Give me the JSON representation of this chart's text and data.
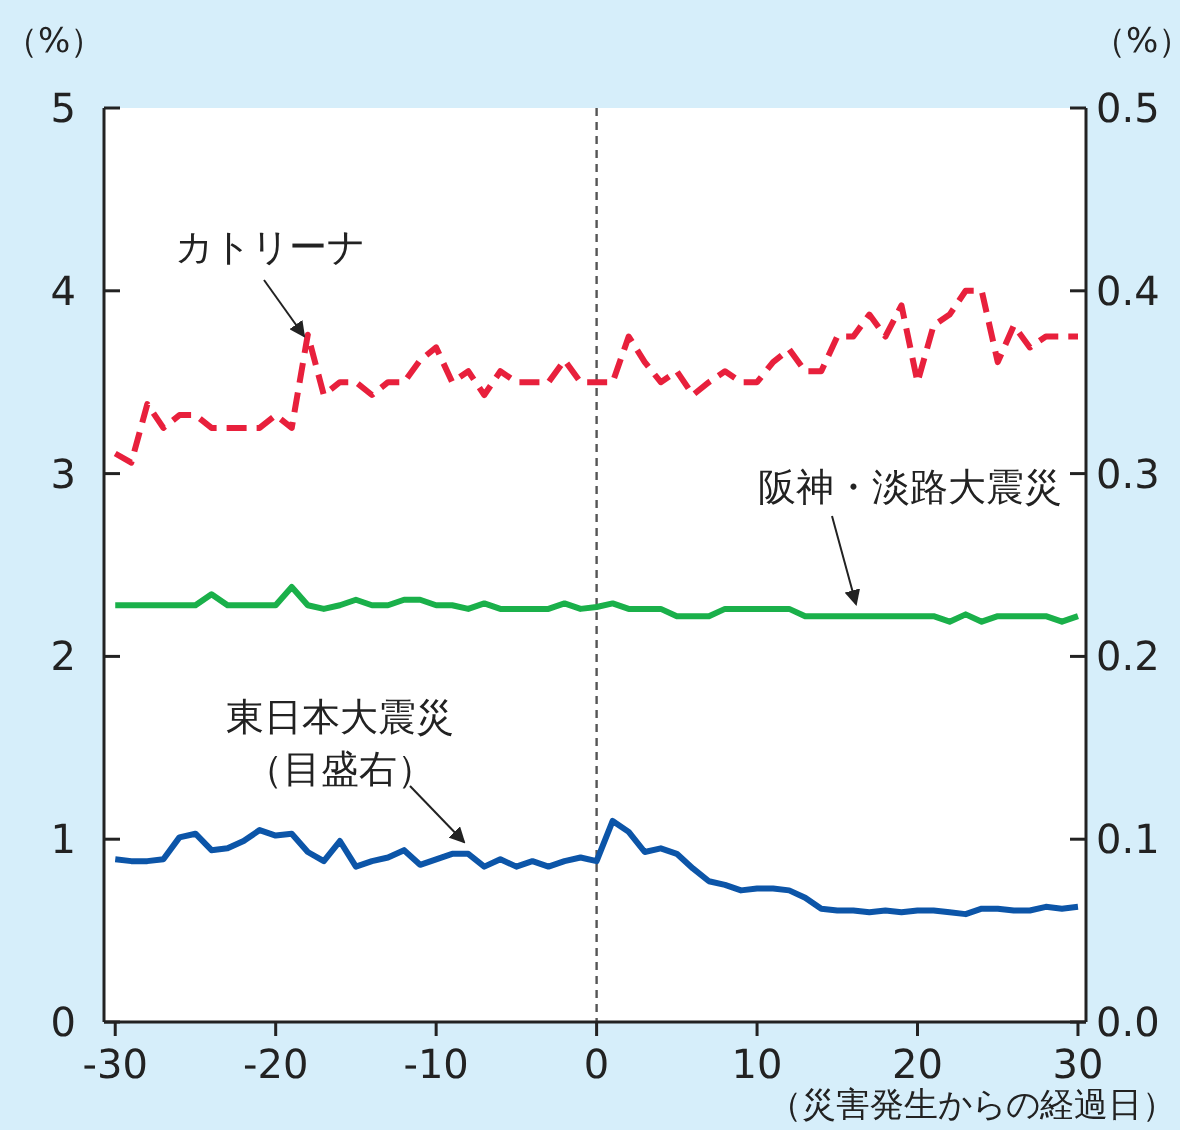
{
  "chart_data": {
    "type": "line",
    "xlabel": "（災害発生からの経過日）",
    "ylabel": "（%）",
    "y2label": "（%）",
    "x": [
      -30,
      -29,
      -28,
      -27,
      -26,
      -25,
      -24,
      -23,
      -22,
      -21,
      -20,
      -19,
      -18,
      -17,
      -16,
      -15,
      -14,
      -13,
      -12,
      -11,
      -10,
      -9,
      -8,
      -7,
      -6,
      -5,
      -4,
      -3,
      -2,
      -1,
      0,
      1,
      2,
      3,
      4,
      5,
      6,
      7,
      8,
      9,
      10,
      11,
      12,
      13,
      14,
      15,
      16,
      17,
      18,
      19,
      20,
      21,
      22,
      23,
      24,
      25,
      26,
      27,
      28,
      29,
      30
    ],
    "series": [
      {
        "name": "カトリーナ",
        "color": "#e8203c",
        "line_style": "dashed",
        "values": [
          3.11,
          3.06,
          3.38,
          3.25,
          3.32,
          3.32,
          3.25,
          3.25,
          3.25,
          3.25,
          3.32,
          3.25,
          3.76,
          3.43,
          3.5,
          3.5,
          3.43,
          3.5,
          3.5,
          3.62,
          3.69,
          3.5,
          3.56,
          3.43,
          3.56,
          3.5,
          3.5,
          3.5,
          3.62,
          3.5,
          3.5,
          3.5,
          3.75,
          3.61,
          3.5,
          3.56,
          3.43,
          3.5,
          3.56,
          3.5,
          3.5,
          3.61,
          3.68,
          3.56,
          3.56,
          3.75,
          3.75,
          3.87,
          3.75,
          3.92,
          3.5,
          3.81,
          3.87,
          4.0,
          4.0,
          3.61,
          3.81,
          3.69,
          3.75,
          3.75,
          3.75
        ]
      },
      {
        "name": "阪神・淡路大震災",
        "color": "#1ab04a",
        "line_style": "solid",
        "values": [
          2.28,
          2.28,
          2.28,
          2.28,
          2.28,
          2.28,
          2.34,
          2.28,
          2.28,
          2.28,
          2.28,
          2.38,
          2.28,
          2.26,
          2.28,
          2.31,
          2.28,
          2.28,
          2.31,
          2.31,
          2.28,
          2.28,
          2.26,
          2.29,
          2.26,
          2.26,
          2.26,
          2.26,
          2.29,
          2.26,
          2.27,
          2.29,
          2.26,
          2.26,
          2.26,
          2.22,
          2.22,
          2.22,
          2.26,
          2.26,
          2.26,
          2.26,
          2.26,
          2.22,
          2.22,
          2.22,
          2.22,
          2.22,
          2.22,
          2.22,
          2.22,
          2.22,
          2.19,
          2.23,
          2.19,
          2.22,
          2.22,
          2.22,
          2.22,
          2.19,
          2.22
        ]
      },
      {
        "name": "東日本大震災",
        "color": "#0c55a8",
        "line_style": "solid",
        "axis": "y2",
        "values": [
          0.089,
          0.088,
          0.088,
          0.089,
          0.101,
          0.103,
          0.094,
          0.095,
          0.099,
          0.105,
          0.102,
          0.103,
          0.093,
          0.088,
          0.099,
          0.085,
          0.088,
          0.09,
          0.094,
          0.086,
          0.089,
          0.092,
          0.092,
          0.085,
          0.089,
          0.085,
          0.088,
          0.085,
          0.088,
          0.09,
          0.088,
          0.11,
          0.104,
          0.093,
          0.095,
          0.092,
          0.084,
          0.077,
          0.075,
          0.072,
          0.073,
          0.073,
          0.072,
          0.068,
          0.062,
          0.061,
          0.061,
          0.06,
          0.061,
          0.06,
          0.061,
          0.061,
          0.06,
          0.059,
          0.062,
          0.062,
          0.061,
          0.061,
          0.063,
          0.062,
          0.063
        ]
      }
    ],
    "annotations": [
      "（目盛右）"
    ],
    "ref_lines": [
      {
        "axis": "x",
        "value": 0,
        "color": "#555555",
        "line_style": "dashed"
      }
    ],
    "xlim": [
      -30.7,
      30.5
    ],
    "xticks": [
      -30,
      -20,
      -10,
      0,
      10,
      20,
      30
    ],
    "ylim": [
      0,
      5
    ],
    "yticks": [
      0,
      1,
      2,
      3,
      4,
      5
    ],
    "y2lim": [
      0,
      0.5
    ],
    "y2ticks": [
      {
        "value": 0,
        "label": "0.0"
      },
      {
        "value": 0.1,
        "label": "0.1"
      },
      {
        "value": 0.2,
        "label": "0.2"
      },
      {
        "value": 0.3,
        "label": "0.3"
      },
      {
        "value": 0.4,
        "label": "0.4"
      },
      {
        "value": 0.5,
        "label": "0.5"
      }
    ],
    "grid": false,
    "marker": "none"
  }
}
